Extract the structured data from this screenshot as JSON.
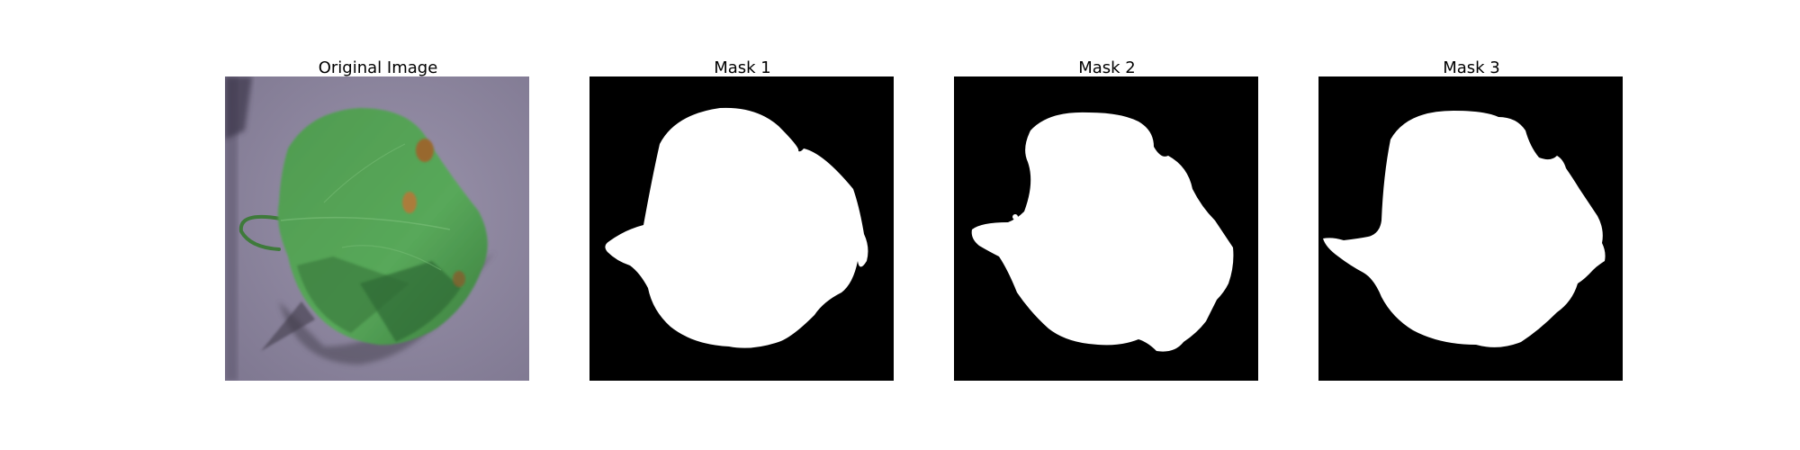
{
  "figure": {
    "panels": [
      {
        "title": "Original Image",
        "kind": "photo"
      },
      {
        "title": "Mask 1",
        "kind": "mask"
      },
      {
        "title": "Mask 2",
        "kind": "mask"
      },
      {
        "title": "Mask 3",
        "kind": "mask"
      }
    ]
  },
  "colors": {
    "background": "#ffffff",
    "mask_background": "#000000",
    "mask_foreground": "#ffffff",
    "photo_background": "#8c849c",
    "leaf": "#4e9a4e",
    "leaf_dark": "#2f6b34",
    "lesion": "#a0622c"
  }
}
